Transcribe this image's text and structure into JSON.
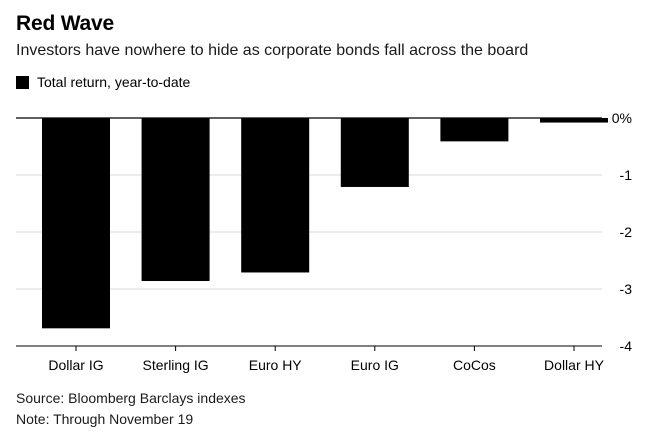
{
  "chart_data": {
    "type": "bar",
    "title": "Red Wave",
    "subtitle": "Investors have nowhere to hide as corporate bonds fall across the board",
    "legend": [
      {
        "name": "Total return, year-to-date",
        "color": "#000000"
      }
    ],
    "categories": [
      "Dollar IG",
      "Sterling IG",
      "Euro HY",
      "Euro IG",
      "CoCos",
      "Dollar HY"
    ],
    "series": [
      {
        "name": "Total return, year-to-date",
        "values": [
          -3.69,
          -2.86,
          -2.71,
          -1.21,
          -0.41,
          -0.08
        ]
      }
    ],
    "yticks": [
      {
        "value": 0,
        "label": "0%"
      },
      {
        "value": -1,
        "label": "-1"
      },
      {
        "value": -2,
        "label": "-2"
      },
      {
        "value": -3,
        "label": "-3"
      },
      {
        "value": -4,
        "label": "-4"
      }
    ],
    "ylim": [
      -4,
      0
    ],
    "grid": true,
    "y_axis_position": "right",
    "bar_color": "#000000",
    "source": "Source: Bloomberg Barclays indexes",
    "note": "Note: Through November 19"
  }
}
